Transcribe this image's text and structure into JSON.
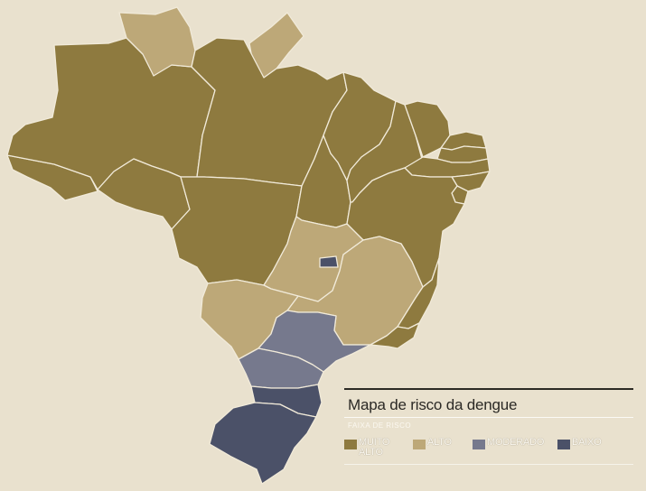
{
  "colors": {
    "background": "#e9e1ce",
    "muito_alto": "#8e7a3f",
    "alto": "#bda878",
    "moderado": "#76798d",
    "baixo": "#4b5168"
  },
  "legend": {
    "title": "Mapa de risco da dengue",
    "subtitle": "FAIXA DE RISCO",
    "items": [
      {
        "label_line1": "MUITO",
        "label_line2": "ALTO",
        "color": "#8e7a3f"
      },
      {
        "label_line1": "ALTO",
        "label_line2": "",
        "color": "#bda878"
      },
      {
        "label_line1": "MODERADO",
        "label_line2": "",
        "color": "#76798d"
      },
      {
        "label_line1": "BAIXO",
        "label_line2": "",
        "color": "#4b5168"
      }
    ]
  },
  "regions": [
    {
      "id": "AC",
      "risk": "muito_alto"
    },
    {
      "id": "AM",
      "risk": "muito_alto"
    },
    {
      "id": "RR",
      "risk": "alto"
    },
    {
      "id": "AP",
      "risk": "alto"
    },
    {
      "id": "PA",
      "risk": "muito_alto"
    },
    {
      "id": "RO",
      "risk": "muito_alto"
    },
    {
      "id": "MT",
      "risk": "muito_alto"
    },
    {
      "id": "TO",
      "risk": "muito_alto"
    },
    {
      "id": "MA",
      "risk": "muito_alto"
    },
    {
      "id": "PI",
      "risk": "muito_alto"
    },
    {
      "id": "CE",
      "risk": "muito_alto"
    },
    {
      "id": "RN",
      "risk": "muito_alto"
    },
    {
      "id": "PB",
      "risk": "muito_alto"
    },
    {
      "id": "PE",
      "risk": "muito_alto"
    },
    {
      "id": "AL",
      "risk": "muito_alto"
    },
    {
      "id": "SE",
      "risk": "muito_alto"
    },
    {
      "id": "BA",
      "risk": "muito_alto"
    },
    {
      "id": "GO",
      "risk": "alto"
    },
    {
      "id": "DF",
      "risk": "baixo"
    },
    {
      "id": "MG",
      "risk": "alto"
    },
    {
      "id": "ES",
      "risk": "muito_alto"
    },
    {
      "id": "RJ",
      "risk": "muito_alto"
    },
    {
      "id": "MS",
      "risk": "alto"
    },
    {
      "id": "SP",
      "risk": "moderado"
    },
    {
      "id": "PR",
      "risk": "moderado"
    },
    {
      "id": "SC",
      "risk": "baixo"
    },
    {
      "id": "RS",
      "risk": "baixo"
    }
  ]
}
